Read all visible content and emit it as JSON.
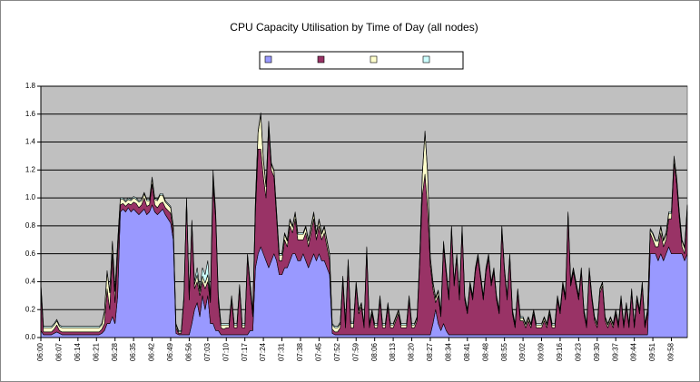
{
  "chart_data": {
    "type": "stacked_area",
    "title": "CPU Capacity Utilisation by Time of Day (all nodes)",
    "categories": [
      "06:00",
      null,
      null,
      null,
      null,
      null,
      null,
      "06:07",
      null,
      null,
      null,
      null,
      null,
      null,
      "06:14",
      null,
      null,
      null,
      null,
      null,
      null,
      "06:21",
      null,
      null,
      null,
      null,
      null,
      null,
      "06:28",
      null,
      null,
      null,
      null,
      null,
      null,
      "06:35",
      null,
      null,
      null,
      null,
      null,
      null,
      "06:42",
      null,
      null,
      null,
      null,
      null,
      null,
      "06:49",
      null,
      null,
      null,
      null,
      null,
      null,
      "06:56",
      null,
      null,
      null,
      null,
      null,
      null,
      "07:03",
      null,
      null,
      null,
      null,
      null,
      null,
      "07:10",
      null,
      null,
      null,
      null,
      null,
      null,
      "07:17",
      null,
      null,
      null,
      null,
      null,
      null,
      "07:24",
      null,
      null,
      null,
      null,
      null,
      null,
      "07:31",
      null,
      null,
      null,
      null,
      null,
      null,
      "07:38",
      null,
      null,
      null,
      null,
      null,
      null,
      "07:45",
      null,
      null,
      null,
      null,
      null,
      null,
      "07:52",
      null,
      null,
      null,
      null,
      null,
      null,
      "07:59",
      null,
      null,
      null,
      null,
      null,
      null,
      "08:06",
      null,
      null,
      null,
      null,
      null,
      null,
      "08:13",
      null,
      null,
      null,
      null,
      null,
      null,
      "08:20",
      null,
      null,
      null,
      null,
      null,
      null,
      "08:27",
      null,
      null,
      null,
      null,
      null,
      null,
      "08:34",
      null,
      null,
      null,
      null,
      null,
      null,
      "08:41",
      null,
      null,
      null,
      null,
      null,
      null,
      "08:48",
      null,
      null,
      null,
      null,
      null,
      null,
      "08:55",
      null,
      null,
      null,
      null,
      null,
      null,
      "09:02",
      null,
      null,
      null,
      null,
      null,
      null,
      "09:09",
      null,
      null,
      null,
      null,
      null,
      null,
      "09:16",
      null,
      null,
      null,
      null,
      null,
      null,
      "09:23",
      null,
      null,
      null,
      null,
      null,
      null,
      "09:30",
      null,
      null,
      null,
      null,
      null,
      null,
      "09:37",
      null,
      null,
      null,
      null,
      null,
      null,
      "09:44",
      null,
      null,
      null,
      null,
      null,
      null,
      "09:51",
      null,
      null,
      null,
      null,
      null,
      null,
      "09:58",
      null,
      null,
      null,
      null,
      null,
      null
    ],
    "series": [
      {
        "color": "#9999ff",
        "values": [
          0.05,
          0.02,
          0.02,
          0.02,
          0.02,
          0.03,
          0.04,
          0.03,
          0.02,
          0.02,
          0.02,
          0.02,
          0.02,
          0.02,
          0.02,
          0.02,
          0.02,
          0.02,
          0.02,
          0.02,
          0.02,
          0.02,
          0.02,
          0.03,
          0.05,
          0.1,
          0.1,
          0.15,
          0.1,
          0.3,
          0.9,
          0.92,
          0.9,
          0.93,
          0.9,
          0.92,
          0.9,
          0.88,
          0.9,
          0.92,
          0.88,
          0.9,
          0.95,
          0.9,
          0.88,
          0.9,
          0.92,
          0.88,
          0.85,
          0.82,
          0.7,
          0.03,
          0.02,
          0.02,
          0.02,
          0.02,
          0.02,
          0.1,
          0.2,
          0.25,
          0.15,
          0.3,
          0.2,
          0.3,
          0.1,
          0.1,
          0.05,
          0.05,
          0.02,
          0.02,
          0.02,
          0.02,
          0.02,
          0.02,
          0.02,
          0.02,
          0.02,
          0.02,
          0.02,
          0.05,
          0.05,
          0.5,
          0.6,
          0.65,
          0.6,
          0.55,
          0.5,
          0.55,
          0.6,
          0.55,
          0.45,
          0.45,
          0.5,
          0.5,
          0.55,
          0.6,
          0.6,
          0.55,
          0.55,
          0.6,
          0.55,
          0.5,
          0.55,
          0.6,
          0.55,
          0.6,
          0.55,
          0.55,
          0.5,
          0.45,
          0.03,
          0.02,
          0.02,
          0.02,
          0.02,
          0.02,
          0.02,
          0.02,
          0.02,
          0.02,
          0.02,
          0.02,
          0.02,
          0.02,
          0.02,
          0.02,
          0.02,
          0.02,
          0.02,
          0.02,
          0.02,
          0.02,
          0.02,
          0.02,
          0.02,
          0.02,
          0.02,
          0.02,
          0.02,
          0.02,
          0.02,
          0.02,
          0.02,
          0.02,
          0.02,
          0.02,
          0.02,
          0.02,
          0.1,
          0.2,
          0.1,
          0.05,
          0.1,
          0.05,
          0.02,
          0.02,
          0.02,
          0.02,
          0.02,
          0.02,
          0.02,
          0.02,
          0.02,
          0.02,
          0.02,
          0.02,
          0.02,
          0.02,
          0.02,
          0.02,
          0.02,
          0.02,
          0.02,
          0.02,
          0.02,
          0.02,
          0.02,
          0.02,
          0.02,
          0.02,
          0.02,
          0.02,
          0.02,
          0.02,
          0.02,
          0.02,
          0.02,
          0.02,
          0.02,
          0.02,
          0.02,
          0.02,
          0.02,
          0.02,
          0.02,
          0.02,
          0.02,
          0.02,
          0.02,
          0.02,
          0.02,
          0.02,
          0.02,
          0.02,
          0.02,
          0.02,
          0.02,
          0.02,
          0.02,
          0.02,
          0.02,
          0.02,
          0.02,
          0.02,
          0.02,
          0.02,
          0.02,
          0.02,
          0.02,
          0.02,
          0.02,
          0.02,
          0.02,
          0.02,
          0.02,
          0.02,
          0.02,
          0.02,
          0.02,
          0.02,
          0.6,
          0.6,
          0.6,
          0.55,
          0.6,
          0.55,
          0.6,
          0.65,
          0.6,
          0.6,
          0.6,
          0.6,
          0.6,
          0.55,
          0.6
        ]
      },
      {
        "color": "#993366",
        "values": [
          0.3,
          0.02,
          0.02,
          0.02,
          0.02,
          0.03,
          0.05,
          0.02,
          0.02,
          0.02,
          0.02,
          0.02,
          0.02,
          0.02,
          0.02,
          0.02,
          0.02,
          0.02,
          0.02,
          0.02,
          0.02,
          0.02,
          0.02,
          0.03,
          0.05,
          0.25,
          0.1,
          0.45,
          0.15,
          0.3,
          0.05,
          0.04,
          0.04,
          0.03,
          0.05,
          0.05,
          0.06,
          0.05,
          0.05,
          0.08,
          0.06,
          0.05,
          0.15,
          0.05,
          0.05,
          0.06,
          0.05,
          0.05,
          0.06,
          0.07,
          0.05,
          0.04,
          0.01,
          0.01,
          0.25,
          0.95,
          0.25,
          0.7,
          0.15,
          0.15,
          0.15,
          0.1,
          0.15,
          0.1,
          0.15,
          1.0,
          0.8,
          0.2,
          0.05,
          0.04,
          0.05,
          0.05,
          0.25,
          0.05,
          0.05,
          0.33,
          0.05,
          0.05,
          0.55,
          0.3,
          0.1,
          0.4,
          0.75,
          0.7,
          0.55,
          0.45,
          1.0,
          0.65,
          0.55,
          0.3,
          0.1,
          0.1,
          0.2,
          0.15,
          0.25,
          0.15,
          0.25,
          0.15,
          0.15,
          0.1,
          0.2,
          0.15,
          0.2,
          0.25,
          0.15,
          0.2,
          0.15,
          0.2,
          0.15,
          0.1,
          0.03,
          0.02,
          0.02,
          0.05,
          0.38,
          0.05,
          0.5,
          0.05,
          0.05,
          0.35,
          0.15,
          0.2,
          0.05,
          0.6,
          0.05,
          0.15,
          0.05,
          0.05,
          0.25,
          0.05,
          0.05,
          0.2,
          0.05,
          0.05,
          0.1,
          0.15,
          0.05,
          0.05,
          0.05,
          0.25,
          0.05,
          0.05,
          0.1,
          0.5,
          1.0,
          1.15,
          0.9,
          0.5,
          0.25,
          0.05,
          0.2,
          0.1,
          0.55,
          0.4,
          0.25,
          0.75,
          0.35,
          0.55,
          0.25,
          0.75,
          0.25,
          0.15,
          0.35,
          0.25,
          0.45,
          0.55,
          0.4,
          0.25,
          0.45,
          0.55,
          0.35,
          0.45,
          0.25,
          0.15,
          0.75,
          0.45,
          0.25,
          0.55,
          0.15,
          0.05,
          0.3,
          0.1,
          0.1,
          0.05,
          0.1,
          0.05,
          0.15,
          0.05,
          0.05,
          0.05,
          0.1,
          0.05,
          0.15,
          0.05,
          0.05,
          0.25,
          0.15,
          0.35,
          0.25,
          0.85,
          0.35,
          0.45,
          0.35,
          0.25,
          0.45,
          0.15,
          0.05,
          0.45,
          0.25,
          0.1,
          0.05,
          0.3,
          0.35,
          0.1,
          0.05,
          0.1,
          0.05,
          0.15,
          0.05,
          0.25,
          0.05,
          0.2,
          0.05,
          0.3,
          0.05,
          0.25,
          0.15,
          0.35,
          0.05,
          0.15,
          0.15,
          0.1,
          0.05,
          0.1,
          0.15,
          0.1,
          0.1,
          0.2,
          0.25,
          0.65,
          0.5,
          0.25,
          0.05,
          0.05,
          0.3
        ]
      },
      {
        "color": "#ffffcc",
        "values": [
          0.03,
          0.03,
          0.03,
          0.03,
          0.03,
          0.03,
          0.03,
          0.03,
          0.03,
          0.03,
          0.03,
          0.03,
          0.03,
          0.03,
          0.03,
          0.03,
          0.03,
          0.03,
          0.03,
          0.03,
          0.03,
          0.03,
          0.03,
          0.03,
          0.08,
          0.12,
          0.12,
          0.08,
          0.08,
          0.08,
          0.04,
          0.03,
          0.03,
          0.03,
          0.03,
          0.03,
          0.03,
          0.04,
          0.03,
          0.03,
          0.04,
          0.03,
          0.04,
          0.04,
          0.05,
          0.06,
          0.05,
          0.04,
          0.04,
          0.04,
          0.04,
          0.02,
          0.01,
          0.01,
          0.02,
          0.02,
          0.02,
          0.03,
          0.03,
          0.05,
          0.03,
          0.04,
          0.04,
          0.05,
          0.03,
          0.06,
          0.03,
          0.03,
          0.02,
          0.03,
          0.02,
          0.02,
          0.02,
          0.02,
          0.02,
          0.02,
          0.02,
          0.02,
          0.02,
          0.03,
          0.03,
          0.08,
          0.12,
          0.25,
          0.12,
          0.08,
          0.04,
          0.04,
          0.04,
          0.04,
          0.04,
          0.04,
          0.04,
          0.04,
          0.04,
          0.04,
          0.04,
          0.04,
          0.04,
          0.04,
          0.04,
          0.04,
          0.04,
          0.04,
          0.04,
          0.04,
          0.04,
          0.04,
          0.04,
          0.04,
          0.03,
          0.03,
          0.03,
          0.03,
          0.03,
          0.03,
          0.03,
          0.03,
          0.03,
          0.02,
          0.02,
          0.02,
          0.02,
          0.02,
          0.02,
          0.02,
          0.02,
          0.02,
          0.02,
          0.02,
          0.02,
          0.02,
          0.02,
          0.02,
          0.02,
          0.02,
          0.02,
          0.02,
          0.02,
          0.02,
          0.02,
          0.02,
          0.02,
          0.05,
          0.15,
          0.3,
          0.25,
          0.05,
          0.04,
          0.03,
          0.03,
          0.03,
          0.03,
          0.03,
          0.02,
          0.02,
          0.02,
          0.02,
          0.02,
          0.02,
          0.02,
          0.02,
          0.02,
          0.02,
          0.02,
          0.02,
          0.02,
          0.02,
          0.02,
          0.02,
          0.02,
          0.02,
          0.02,
          0.02,
          0.02,
          0.02,
          0.02,
          0.02,
          0.02,
          0.02,
          0.02,
          0.02,
          0.02,
          0.02,
          0.02,
          0.02,
          0.02,
          0.02,
          0.02,
          0.02,
          0.02,
          0.02,
          0.02,
          0.02,
          0.02,
          0.02,
          0.02,
          0.02,
          0.02,
          0.02,
          0.02,
          0.02,
          0.02,
          0.02,
          0.02,
          0.02,
          0.02,
          0.02,
          0.02,
          0.02,
          0.02,
          0.02,
          0.02,
          0.02,
          0.02,
          0.02,
          0.02,
          0.02,
          0.02,
          0.02,
          0.02,
          0.02,
          0.02,
          0.02,
          0.02,
          0.02,
          0.02,
          0.02,
          0.02,
          0.02,
          0.02,
          0.04,
          0.04,
          0.04,
          0.04,
          0.04,
          0.04,
          0.04,
          0.04,
          0.04,
          0.04,
          0.04,
          0.04,
          0.04,
          0.04
        ]
      },
      {
        "color": "#ccffff",
        "values": [
          0.01,
          0.01,
          0.01,
          0.01,
          0.01,
          0.01,
          0.01,
          0.01,
          0.01,
          0.01,
          0.01,
          0.01,
          0.01,
          0.01,
          0.01,
          0.01,
          0.01,
          0.01,
          0.01,
          0.01,
          0.01,
          0.01,
          0.01,
          0.01,
          0.01,
          0.01,
          0.01,
          0.01,
          0.01,
          0.01,
          0.01,
          0.01,
          0.01,
          0.01,
          0.01,
          0.01,
          0.01,
          0.01,
          0.01,
          0.01,
          0.01,
          0.01,
          0.01,
          0.01,
          0.01,
          0.01,
          0.01,
          0.01,
          0.01,
          0.01,
          0.01,
          0.01,
          0.01,
          0.01,
          0.01,
          0.01,
          0.01,
          0.01,
          0.02,
          0.05,
          0.02,
          0.06,
          0.06,
          0.1,
          0.02,
          0.04,
          0.02,
          0.02,
          0.01,
          0.01,
          0.01,
          0.01,
          0.01,
          0.01,
          0.01,
          0.01,
          0.01,
          0.01,
          0.01,
          0.01,
          0.01,
          0.01,
          0.01,
          0.01,
          0.01,
          0.01,
          0.01,
          0.01,
          0.01,
          0.01,
          0.01,
          0.01,
          0.01,
          0.01,
          0.01,
          0.01,
          0.01,
          0.01,
          0.01,
          0.01,
          0.01,
          0.01,
          0.01,
          0.01,
          0.01,
          0.01,
          0.01,
          0.01,
          0.01,
          0.01,
          0.01,
          0.01,
          0.01,
          0.01,
          0.01,
          0.01,
          0.01,
          0.01,
          0.01,
          0.01,
          0.01,
          0.01,
          0.01,
          0.01,
          0.01,
          0.01,
          0.01,
          0.01,
          0.01,
          0.01,
          0.01,
          0.01,
          0.01,
          0.01,
          0.01,
          0.01,
          0.01,
          0.01,
          0.01,
          0.01,
          0.01,
          0.01,
          0.01,
          0.01,
          0.01,
          0.01,
          0.01,
          0.01,
          0.01,
          0.01,
          0.01,
          0.01,
          0.01,
          0.01,
          0.01,
          0.01,
          0.01,
          0.01,
          0.01,
          0.01,
          0.01,
          0.01,
          0.01,
          0.01,
          0.01,
          0.01,
          0.01,
          0.01,
          0.01,
          0.01,
          0.01,
          0.01,
          0.01,
          0.01,
          0.01,
          0.01,
          0.01,
          0.01,
          0.01,
          0.01,
          0.01,
          0.01,
          0.01,
          0.01,
          0.01,
          0.01,
          0.01,
          0.01,
          0.01,
          0.01,
          0.01,
          0.01,
          0.01,
          0.01,
          0.01,
          0.01,
          0.01,
          0.01,
          0.01,
          0.01,
          0.01,
          0.01,
          0.01,
          0.01,
          0.01,
          0.01,
          0.01,
          0.01,
          0.01,
          0.01,
          0.01,
          0.01,
          0.01,
          0.01,
          0.01,
          0.01,
          0.01,
          0.01,
          0.01,
          0.01,
          0.01,
          0.01,
          0.01,
          0.01,
          0.01,
          0.01,
          0.01,
          0.01,
          0.01,
          0.01,
          0.01,
          0.01,
          0.01,
          0.01,
          0.01,
          0.01,
          0.01,
          0.01,
          0.01,
          0.01,
          0.01,
          0.01,
          0.01,
          0.01,
          0.01
        ]
      }
    ],
    "ylim": [
      0,
      1.8
    ],
    "yticks": [
      {
        "value": 0,
        "label": "0.0"
      },
      0.2,
      0.4,
      0.6,
      0.8,
      {
        "value": 1,
        "label": "1.0"
      },
      1.2,
      1.4,
      1.6,
      1.8
    ],
    "grid": true,
    "plot_background": "#c0c0c0",
    "legend": "top"
  }
}
